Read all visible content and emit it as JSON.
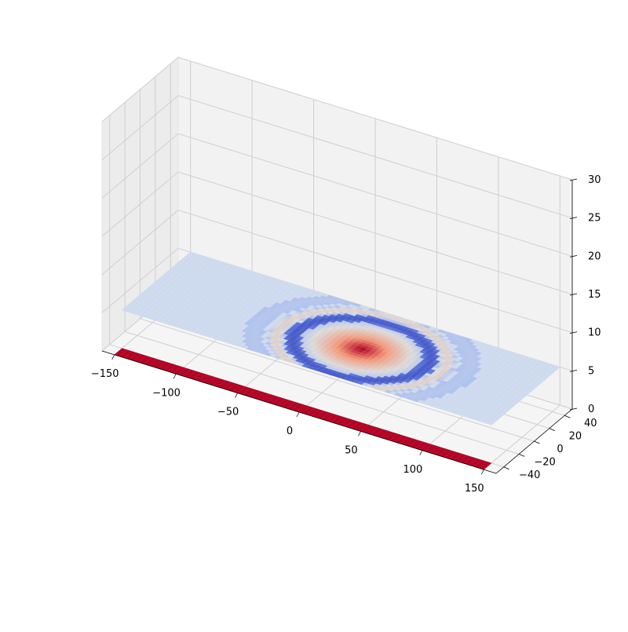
{
  "chart_data": {
    "type": "surface3d",
    "title": "",
    "xlabel": "",
    "ylabel": "",
    "zlabel": "",
    "colormap": "coolwarm",
    "grid": true,
    "xlim": [
      -160,
      160
    ],
    "ylim": [
      -50,
      50
    ],
    "zlim": [
      0,
      30
    ],
    "xticks": [
      -150,
      -100,
      -50,
      0,
      50,
      100,
      150
    ],
    "yticks": [
      -40,
      -20,
      0,
      20,
      40
    ],
    "zticks": [
      0,
      5,
      10,
      15,
      20,
      25,
      30
    ],
    "xtick_labels": [
      "−150",
      "−100",
      "−50",
      "0",
      "50",
      "100",
      "150"
    ],
    "ytick_labels": [
      "−40",
      "−20",
      "0",
      "20",
      "40"
    ],
    "ztick_labels": [
      "0",
      "5",
      "10",
      "15",
      "20",
      "25",
      "30"
    ],
    "surfaces": [
      {
        "name": "",
        "z_constant": 0,
        "x_range": [
          -150,
          150
        ],
        "y_range": [
          -50,
          -40
        ],
        "color": "#b40426",
        "description": "thin strip at z=0 along the front edge"
      },
      {
        "name": "",
        "z": 5,
        "x_range": [
          -150,
          150
        ],
        "y_range": [
          -40,
          50
        ],
        "baseline_color": "#cfdcef",
        "feature": "radially oscillating pattern centred near x=20, y=0: warm red core, blue ring at radius ~45, weak red outer ring at radius ~70, fading to flat",
        "center": [
          20,
          0
        ],
        "core_radius": 45,
        "ring_radius": 70
      }
    ]
  }
}
